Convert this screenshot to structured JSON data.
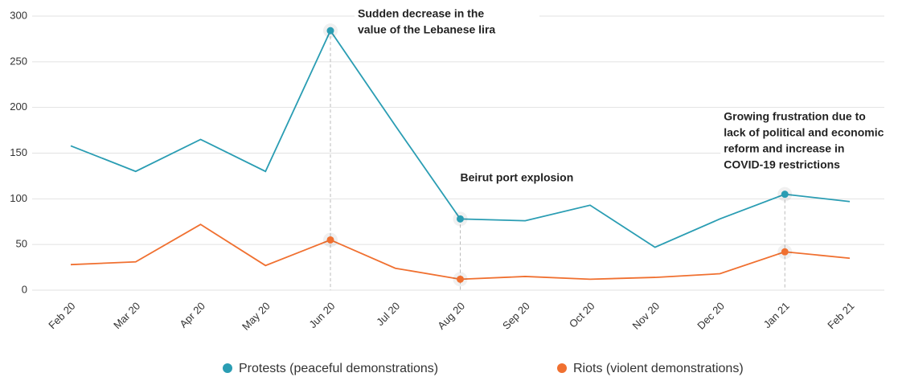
{
  "chart_data": {
    "type": "line",
    "categories": [
      "Feb 20",
      "Mar 20",
      "Apr 20",
      "May 20",
      "Jun 20",
      "Jul 20",
      "Aug 20",
      "Sep 20",
      "Oct 20",
      "Nov 20",
      "Dec 20",
      "Jan 21",
      "Feb 21"
    ],
    "series": [
      {
        "name": "Protests (peaceful demonstrations)",
        "color": "#2a9db3",
        "values": [
          158,
          130,
          165,
          130,
          284,
          180,
          78,
          76,
          93,
          47,
          78,
          105,
          97
        ]
      },
      {
        "name": "Riots (violent demonstrations)",
        "color": "#f07030",
        "values": [
          28,
          31,
          72,
          27,
          55,
          24,
          12,
          15,
          12,
          14,
          18,
          42,
          35
        ]
      }
    ],
    "ylim": [
      0,
      300
    ],
    "yticks": [
      0,
      50,
      100,
      150,
      200,
      250,
      300
    ],
    "grid": true,
    "legend": "bottom",
    "annotations": [
      {
        "category": "Jun 20",
        "lines": [
          "Sudden decrease in the",
          "value of the Lebanese lira"
        ]
      },
      {
        "category": "Aug 20",
        "lines": [
          "Beirut port explosion"
        ]
      },
      {
        "category": "Jan 21",
        "lines": [
          "Growing frustration due to",
          "lack of political and economic",
          "reform and increase in",
          "COVID-19 restrictions"
        ]
      }
    ]
  }
}
